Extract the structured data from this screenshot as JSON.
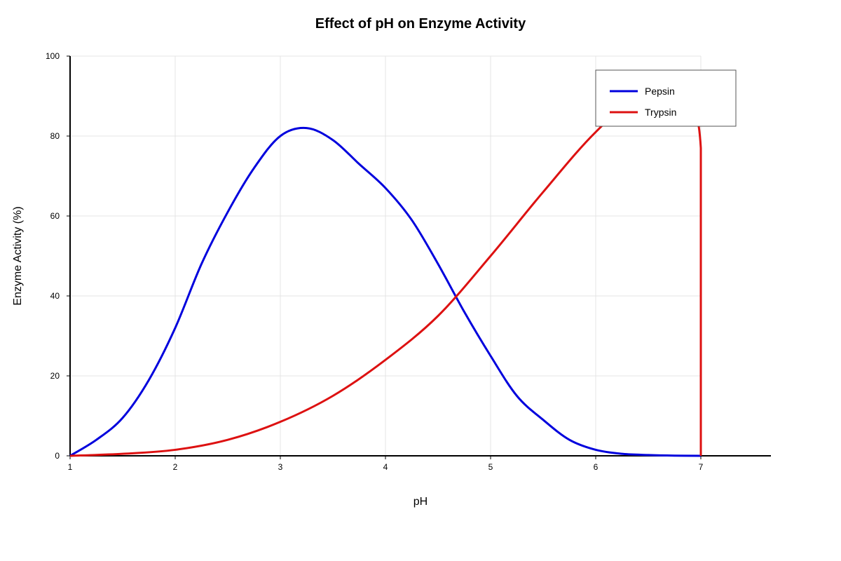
{
  "chart_data": {
    "type": "line",
    "title": "Effect of pH on Enzyme Activity",
    "xlabel": "pH",
    "ylabel": "Enzyme Activity (%)",
    "xlim": [
      1,
      7
    ],
    "ylim": [
      0,
      100
    ],
    "x_ticks": [
      "1",
      "2",
      "3",
      "4",
      "5",
      "6",
      "7"
    ],
    "y_ticks": [
      "0",
      "20",
      "40",
      "60",
      "80",
      "100"
    ],
    "grid": true,
    "legend_position": "top-right",
    "series": [
      {
        "name": "Pepsin",
        "color": "#0000dd",
        "points": [
          [
            1.0,
            0
          ],
          [
            1.25,
            4
          ],
          [
            1.5,
            9.5
          ],
          [
            1.75,
            19
          ],
          [
            2.0,
            32
          ],
          [
            2.25,
            48
          ],
          [
            2.5,
            61
          ],
          [
            2.75,
            72
          ],
          [
            3.0,
            80
          ],
          [
            3.25,
            82
          ],
          [
            3.5,
            79
          ],
          [
            3.75,
            73
          ],
          [
            4.0,
            67
          ],
          [
            4.25,
            59
          ],
          [
            4.5,
            48
          ],
          [
            4.75,
            36
          ],
          [
            5.0,
            25
          ],
          [
            5.25,
            15
          ],
          [
            5.5,
            9
          ],
          [
            5.75,
            4
          ],
          [
            6.0,
            1.5
          ],
          [
            6.25,
            0.5
          ],
          [
            6.5,
            0.2
          ],
          [
            6.75,
            0.05
          ],
          [
            7.0,
            0
          ]
        ]
      },
      {
        "name": "Trypsin",
        "color": "#dd1111",
        "points": [
          [
            1.0,
            0
          ],
          [
            1.5,
            0.5
          ],
          [
            2.0,
            1.5
          ],
          [
            2.5,
            4
          ],
          [
            3.0,
            8.5
          ],
          [
            3.5,
            15
          ],
          [
            4.0,
            24
          ],
          [
            4.5,
            35
          ],
          [
            5.0,
            50
          ],
          [
            5.5,
            66
          ],
          [
            6.0,
            81
          ],
          [
            6.5,
            92
          ],
          [
            6.8,
            87
          ],
          [
            7.0,
            77
          ],
          [
            7.0,
            0
          ]
        ]
      }
    ]
  }
}
